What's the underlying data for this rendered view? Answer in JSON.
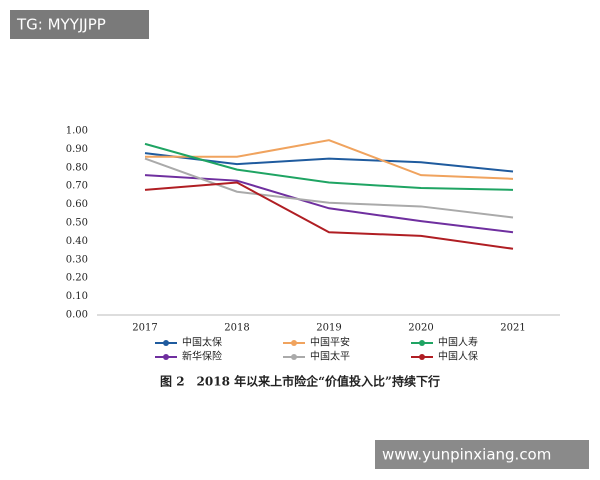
{
  "chart_data": {
    "type": "line",
    "caption": "图 2　2018 年以来上市险企“价值投入比”持续下行",
    "categories": [
      "2017",
      "2018",
      "2019",
      "2020",
      "2021"
    ],
    "series": [
      {
        "name": "中国太保",
        "color": "#1f5b9e",
        "values": [
          0.88,
          0.82,
          0.85,
          0.83,
          0.78
        ]
      },
      {
        "name": "中国平安",
        "color": "#f0a35e",
        "values": [
          0.86,
          0.86,
          0.95,
          0.76,
          0.74
        ]
      },
      {
        "name": "中国人寿",
        "color": "#1fa463",
        "values": [
          0.93,
          0.79,
          0.72,
          0.69,
          0.68
        ]
      },
      {
        "name": "新华保险",
        "color": "#6f2f9f",
        "values": [
          0.76,
          0.73,
          0.58,
          0.51,
          0.45
        ]
      },
      {
        "name": "中国太平",
        "color": "#aaaaaa",
        "values": [
          0.85,
          0.67,
          0.61,
          0.59,
          0.53
        ]
      },
      {
        "name": "中国人保",
        "color": "#b01e23",
        "values": [
          0.68,
          0.72,
          0.45,
          0.43,
          0.36
        ]
      }
    ],
    "ylim": [
      0,
      1
    ],
    "yticks": [
      {
        "value": 0,
        "label": "0.00"
      },
      {
        "value": 0.1,
        "label": "0.10"
      },
      {
        "value": 0.2,
        "label": "0.20"
      },
      {
        "value": 0.3,
        "label": "0.30"
      },
      {
        "value": 0.4,
        "label": "0.40"
      },
      {
        "value": 0.5,
        "label": "0.50"
      },
      {
        "value": 0.6,
        "label": "0.60"
      },
      {
        "value": 0.7,
        "label": "0.70"
      },
      {
        "value": 0.8,
        "label": "0.80"
      },
      {
        "value": 0.9,
        "label": "0.90"
      },
      {
        "value": 1,
        "label": "1.00"
      }
    ],
    "grid": false,
    "legend": "bottom"
  },
  "watermarks": [
    "TG: MYYJJPP",
    "www.yunpinxiang.com"
  ]
}
